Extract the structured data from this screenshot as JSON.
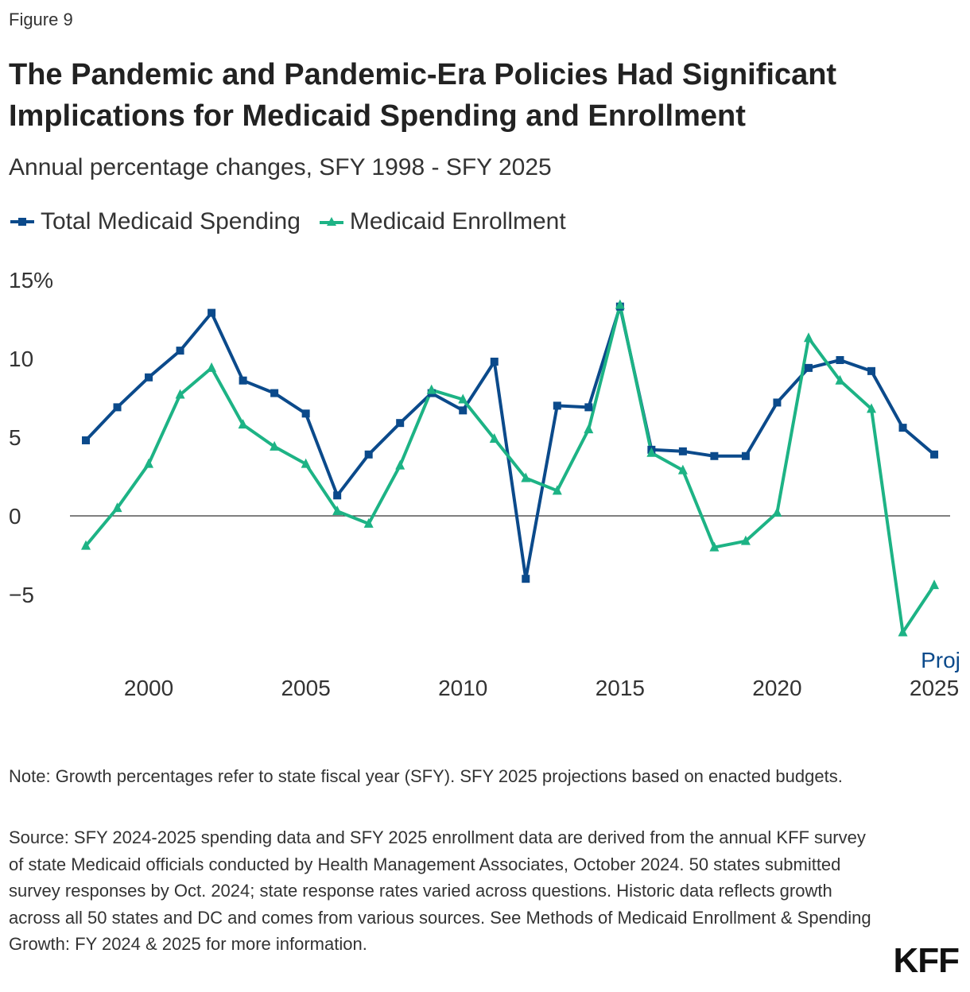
{
  "figure_label": "Figure 9",
  "chart_data": {
    "type": "line",
    "title": "The Pandemic and Pandemic-Era Policies Had Significant Implications for Medicaid Spending and Enrollment",
    "subtitle": "Annual percentage changes, SFY 1998 - SFY 2025",
    "x": [
      1998,
      1999,
      2000,
      2001,
      2002,
      2003,
      2004,
      2005,
      2006,
      2007,
      2008,
      2009,
      2010,
      2011,
      2012,
      2013,
      2014,
      2015,
      2016,
      2017,
      2018,
      2019,
      2020,
      2021,
      2022,
      2023,
      2024,
      2025
    ],
    "series": [
      {
        "name": "Total Medicaid Spending",
        "color": "#0b4a8b",
        "marker": "square",
        "values": [
          4.8,
          6.9,
          8.8,
          10.5,
          12.9,
          8.6,
          7.8,
          6.5,
          1.3,
          3.9,
          5.9,
          7.8,
          6.7,
          9.8,
          -4.0,
          7.0,
          6.9,
          13.3,
          4.2,
          4.1,
          3.8,
          3.8,
          7.2,
          9.4,
          9.9,
          9.2,
          5.6,
          3.9
        ]
      },
      {
        "name": "Medicaid Enrollment",
        "color": "#1db385",
        "marker": "triangle",
        "values": [
          -1.9,
          0.5,
          3.3,
          7.7,
          9.4,
          5.8,
          4.4,
          3.3,
          0.3,
          -0.5,
          3.2,
          8.0,
          7.4,
          4.9,
          2.4,
          1.6,
          5.5,
          13.4,
          4.0,
          2.9,
          -2.0,
          -1.6,
          0.2,
          11.3,
          8.6,
          6.8,
          -7.4,
          -4.4
        ]
      }
    ],
    "ylim": [
      -8.5,
      15
    ],
    "y_ticks": [
      {
        "v": 15,
        "label": "15%"
      },
      {
        "v": 10,
        "label": "10"
      },
      {
        "v": 5,
        "label": "5"
      },
      {
        "v": 0,
        "label": "0"
      },
      {
        "v": -5,
        "label": "−5"
      }
    ],
    "x_ticks": [
      {
        "v": 2000,
        "label": "2000"
      },
      {
        "v": 2005,
        "label": "2005"
      },
      {
        "v": 2010,
        "label": "2010"
      },
      {
        "v": 2015,
        "label": "2015"
      },
      {
        "v": 2020,
        "label": "2020"
      },
      {
        "v": 2025,
        "label": "2025"
      }
    ],
    "annotation": "Proj",
    "legend": "top-left",
    "grid": false
  },
  "note": "Note: Growth percentages refer to state fiscal year (SFY). SFY 2025 projections based on enacted budgets.",
  "source": "Source: SFY 2024-2025 spending data and SFY 2025 enrollment data are derived from the annual KFF survey of state Medicaid officials conducted by Health Management Associates, October 2024. 50 states submitted survey responses by Oct. 2024; state response rates varied across questions. Historic data reflects growth across all 50 states and DC and comes from various sources. See Methods of Medicaid Enrollment & Spending Growth: FY 2024 & 2025 for more information.",
  "logo": "KFF"
}
